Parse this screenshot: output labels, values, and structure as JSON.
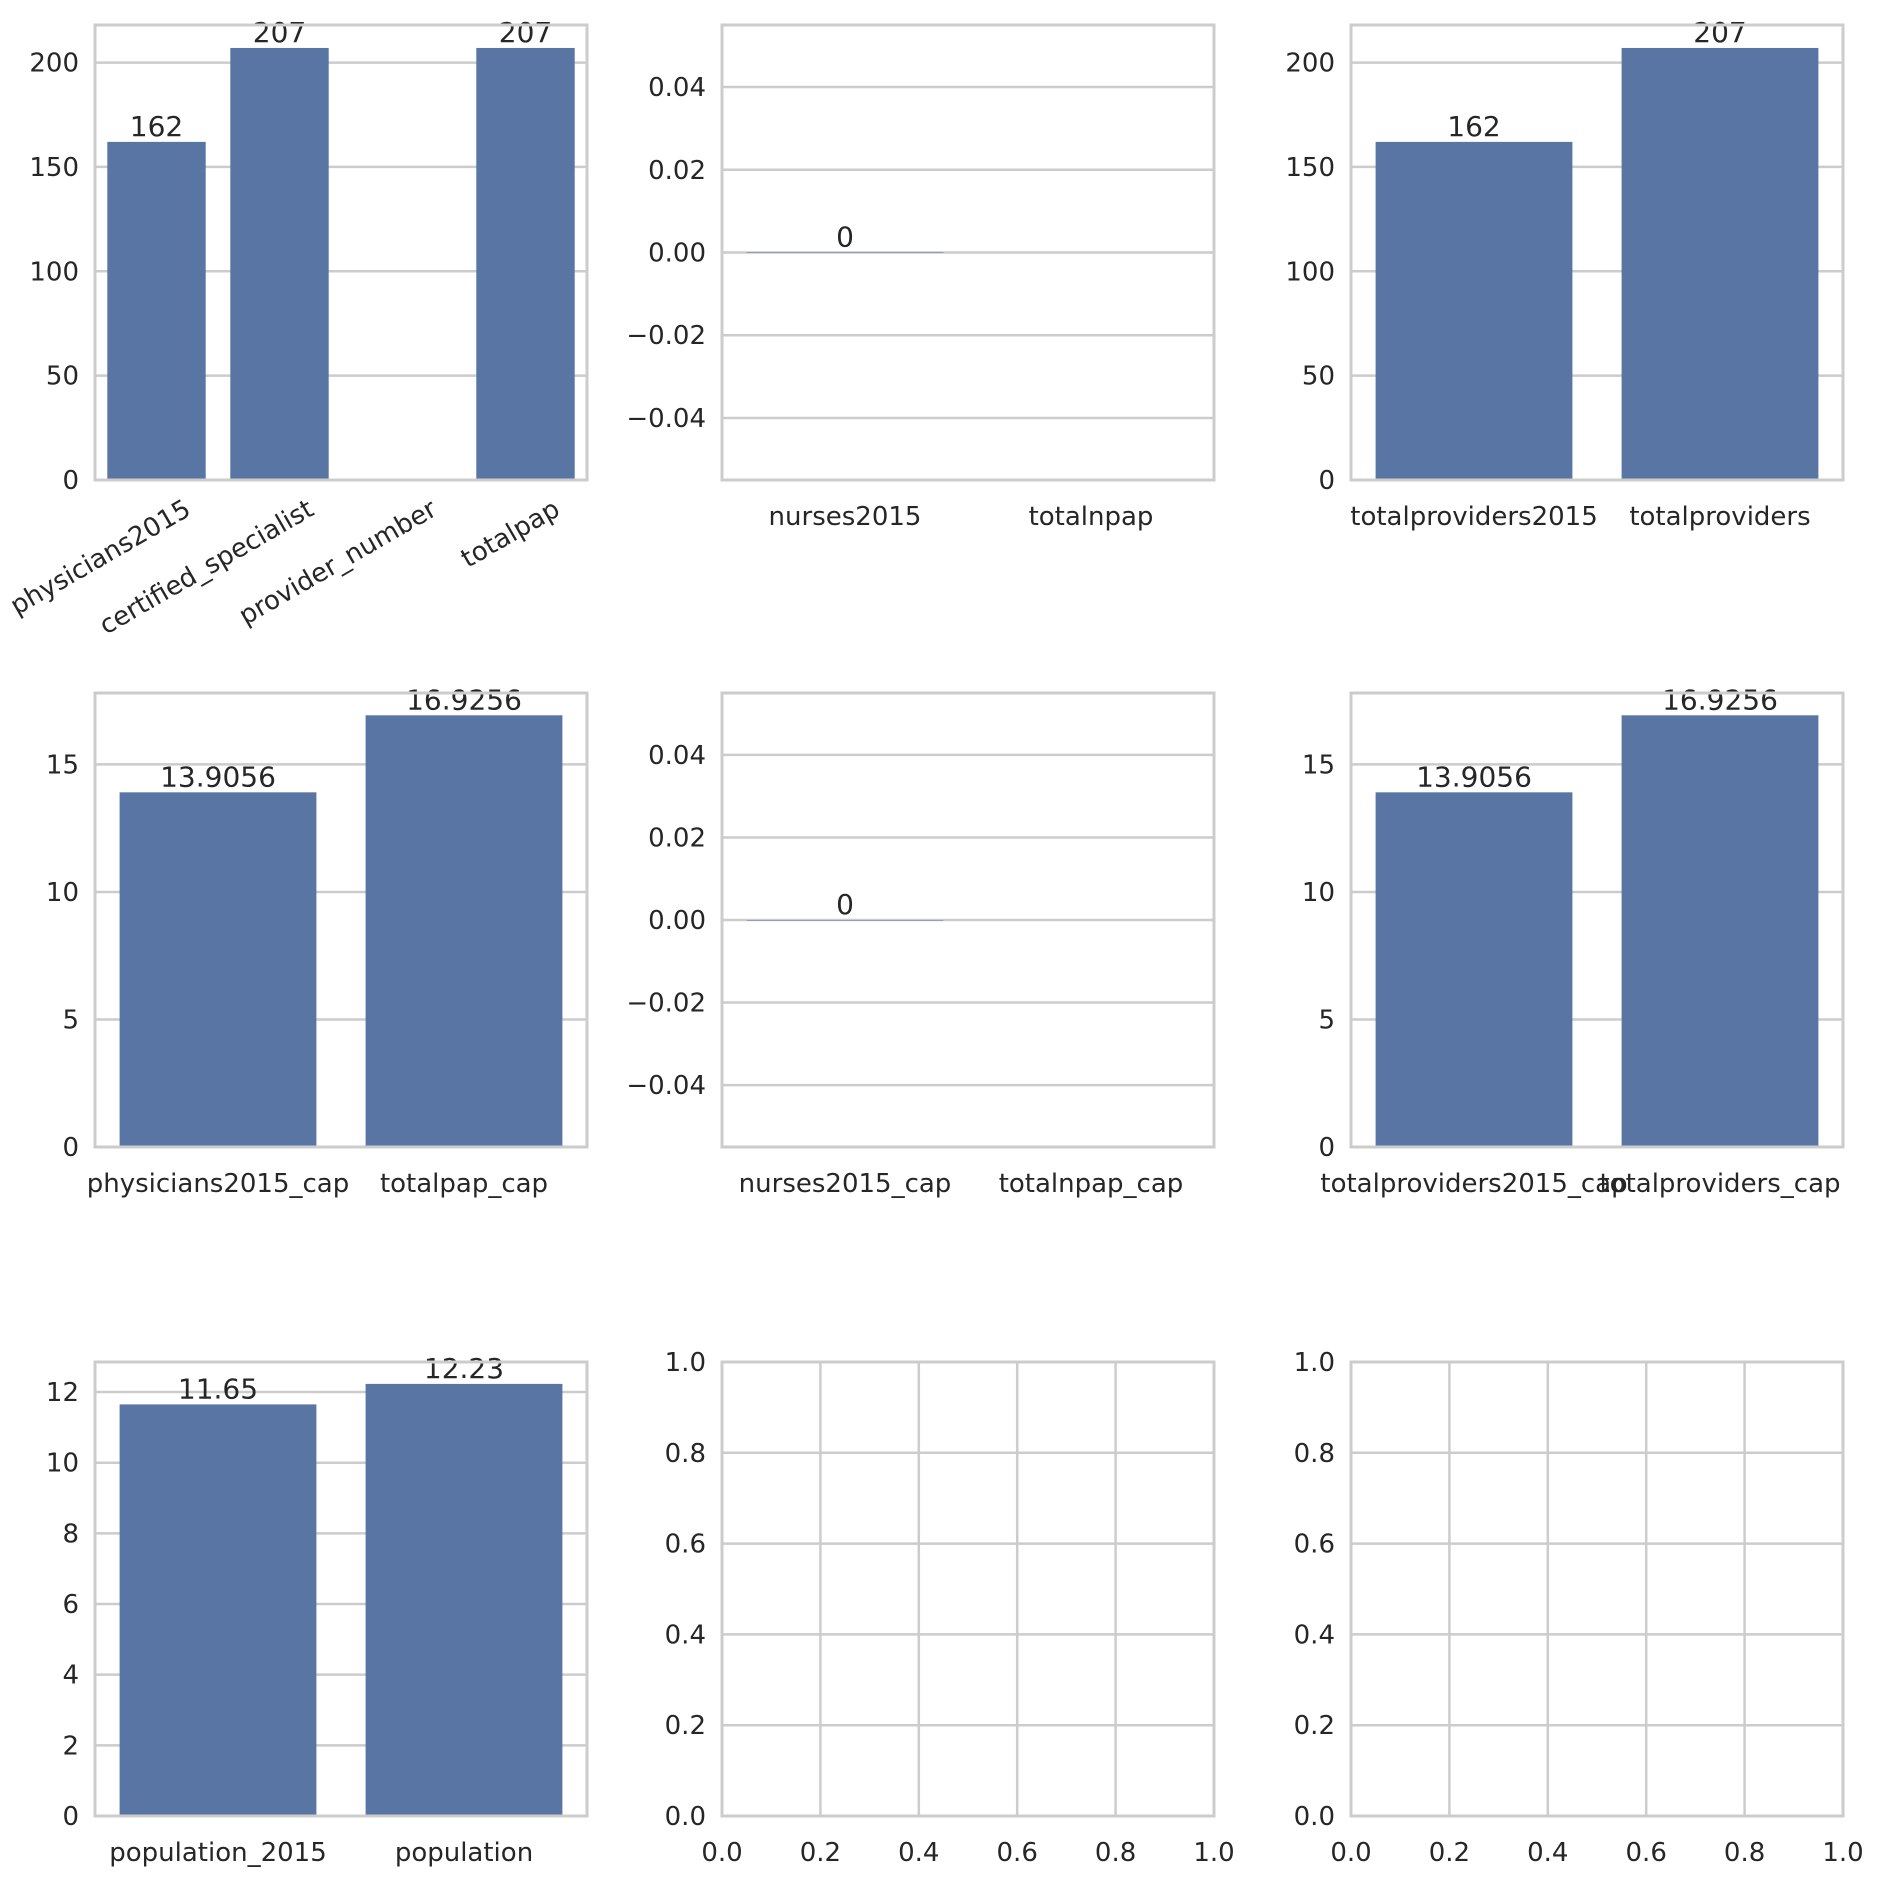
{
  "chart_data": [
    {
      "type": "bar",
      "categories": [
        "physicians2015",
        "certified_specialist",
        "provider_number",
        "totalpap"
      ],
      "values": [
        162,
        207,
        null,
        207
      ],
      "value_labels": [
        "162",
        "207",
        "",
        "207"
      ],
      "ylim": [
        0,
        218
      ],
      "yticks": [
        0,
        50,
        100,
        150,
        200
      ],
      "ytick_labels": [
        "0",
        "50",
        "100",
        "150",
        "200"
      ],
      "xtick_rotation": 30,
      "grid": "horizontal"
    },
    {
      "type": "bar",
      "categories": [
        "nurses2015",
        "totalnpap"
      ],
      "values": [
        0,
        null
      ],
      "value_labels": [
        "0",
        ""
      ],
      "ylim": [
        -0.055,
        0.055
      ],
      "yticks": [
        -0.04,
        -0.02,
        0,
        0.02,
        0.04
      ],
      "ytick_labels": [
        "−0.04",
        "−0.02",
        "0.00",
        "0.02",
        "0.04"
      ],
      "grid": "horizontal"
    },
    {
      "type": "bar",
      "categories": [
        "totalproviders2015",
        "totalproviders"
      ],
      "values": [
        162,
        207
      ],
      "value_labels": [
        "162",
        "207"
      ],
      "ylim": [
        0,
        218
      ],
      "yticks": [
        0,
        50,
        100,
        150,
        200
      ],
      "ytick_labels": [
        "0",
        "50",
        "100",
        "150",
        "200"
      ],
      "grid": "horizontal"
    },
    {
      "type": "bar",
      "categories": [
        "physicians2015_cap",
        "totalpap_cap"
      ],
      "values": [
        13.9056,
        16.9256
      ],
      "value_labels": [
        "13.9056",
        "16.9256"
      ],
      "ylim": [
        0,
        17.8
      ],
      "yticks": [
        0,
        5,
        10,
        15
      ],
      "ytick_labels": [
        "0",
        "5",
        "10",
        "15"
      ],
      "grid": "horizontal"
    },
    {
      "type": "bar",
      "categories": [
        "nurses2015_cap",
        "totalnpap_cap"
      ],
      "values": [
        0,
        null
      ],
      "value_labels": [
        "0",
        ""
      ],
      "ylim": [
        -0.055,
        0.055
      ],
      "yticks": [
        -0.04,
        -0.02,
        0,
        0.02,
        0.04
      ],
      "ytick_labels": [
        "−0.04",
        "−0.02",
        "0.00",
        "0.02",
        "0.04"
      ],
      "grid": "horizontal"
    },
    {
      "type": "bar",
      "categories": [
        "totalproviders2015_cap",
        "totalproviders_cap"
      ],
      "values": [
        13.9056,
        16.9256
      ],
      "value_labels": [
        "13.9056",
        "16.9256"
      ],
      "ylim": [
        0,
        17.8
      ],
      "yticks": [
        0,
        5,
        10,
        15
      ],
      "ytick_labels": [
        "0",
        "5",
        "10",
        "15"
      ],
      "grid": "horizontal"
    },
    {
      "type": "bar",
      "categories": [
        "population_2015",
        "population"
      ],
      "values": [
        11.65,
        12.23
      ],
      "value_labels": [
        "11.65",
        "12.23"
      ],
      "ylim": [
        0,
        12.85
      ],
      "yticks": [
        0,
        2,
        4,
        6,
        8,
        10,
        12
      ],
      "ytick_labels": [
        "0",
        "2",
        "4",
        "6",
        "8",
        "10",
        "12"
      ],
      "grid": "horizontal"
    },
    {
      "type": "empty",
      "xlim": [
        0,
        1
      ],
      "ylim": [
        0,
        1
      ],
      "xticks": [
        0,
        0.2,
        0.4,
        0.6,
        0.8,
        1.0
      ],
      "xtick_labels": [
        "0.0",
        "0.2",
        "0.4",
        "0.6",
        "0.8",
        "1.0"
      ],
      "yticks": [
        0,
        0.2,
        0.4,
        0.6,
        0.8,
        1.0
      ],
      "ytick_labels": [
        "0.0",
        "0.2",
        "0.4",
        "0.6",
        "0.8",
        "1.0"
      ],
      "grid": "both"
    },
    {
      "type": "empty",
      "xlim": [
        0,
        1
      ],
      "ylim": [
        0,
        1
      ],
      "xticks": [
        0,
        0.2,
        0.4,
        0.6,
        0.8,
        1.0
      ],
      "xtick_labels": [
        "0.0",
        "0.2",
        "0.4",
        "0.6",
        "0.8",
        "1.0"
      ],
      "yticks": [
        0,
        0.2,
        0.4,
        0.6,
        0.8,
        1.0
      ],
      "ytick_labels": [
        "0.0",
        "0.2",
        "0.4",
        "0.6",
        "0.8",
        "1.0"
      ],
      "grid": "both"
    }
  ],
  "colors": {
    "bar": "#5975a4",
    "grid": "#cccccc",
    "text": "#262626"
  }
}
